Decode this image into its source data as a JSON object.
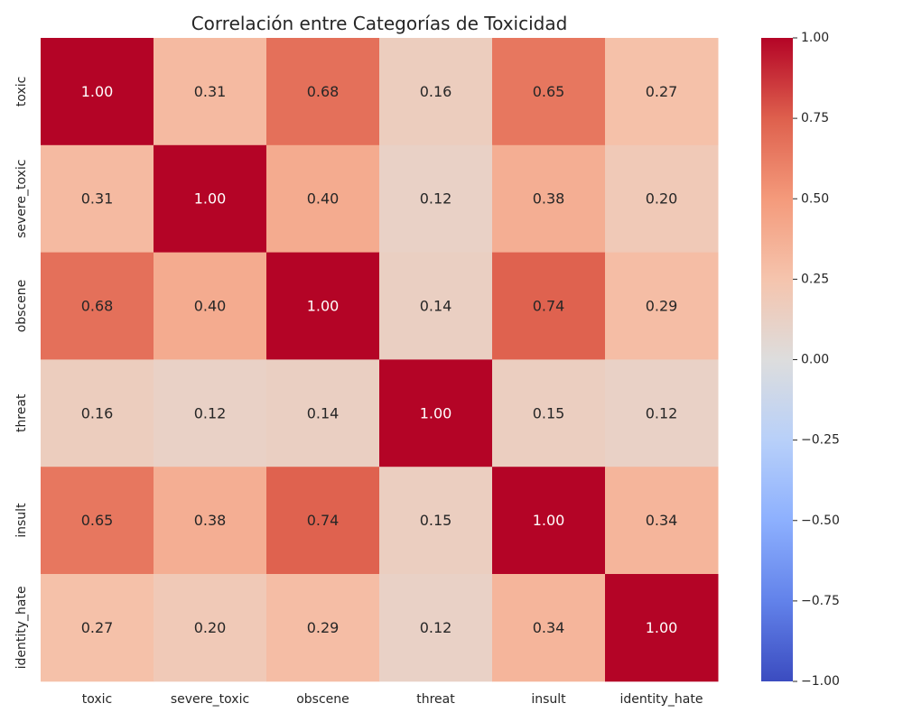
{
  "chart_data": {
    "type": "heatmap",
    "title": "Correlación entre Categorías de Toxicidad",
    "xlabel": "",
    "ylabel": "",
    "x_categories": [
      "toxic",
      "severe_toxic",
      "obscene",
      "threat",
      "insult",
      "identity_hate"
    ],
    "y_categories": [
      "toxic",
      "severe_toxic",
      "obscene",
      "threat",
      "insult",
      "identity_hate"
    ],
    "values": [
      [
        1.0,
        0.31,
        0.68,
        0.16,
        0.65,
        0.27
      ],
      [
        0.31,
        1.0,
        0.4,
        0.12,
        0.38,
        0.2
      ],
      [
        0.68,
        0.4,
        1.0,
        0.14,
        0.74,
        0.29
      ],
      [
        0.16,
        0.12,
        0.14,
        1.0,
        0.15,
        0.12
      ],
      [
        0.65,
        0.38,
        0.74,
        0.15,
        1.0,
        0.34
      ],
      [
        0.27,
        0.2,
        0.29,
        0.12,
        0.34,
        1.0
      ]
    ],
    "value_format": "0.00",
    "annotations": true,
    "colormap": "coolwarm",
    "vmin": -1.0,
    "vmax": 1.0,
    "colorbar": {
      "ticks": [
        1.0,
        0.75,
        0.5,
        0.25,
        0.0,
        -0.25,
        -0.5,
        -0.75,
        -1.0
      ],
      "tick_labels": [
        "1.00",
        "0.75",
        "0.50",
        "0.25",
        "0.00",
        "−0.25",
        "−0.50",
        "−0.75",
        "−1.00"
      ],
      "placement": "right"
    },
    "grid": false
  }
}
